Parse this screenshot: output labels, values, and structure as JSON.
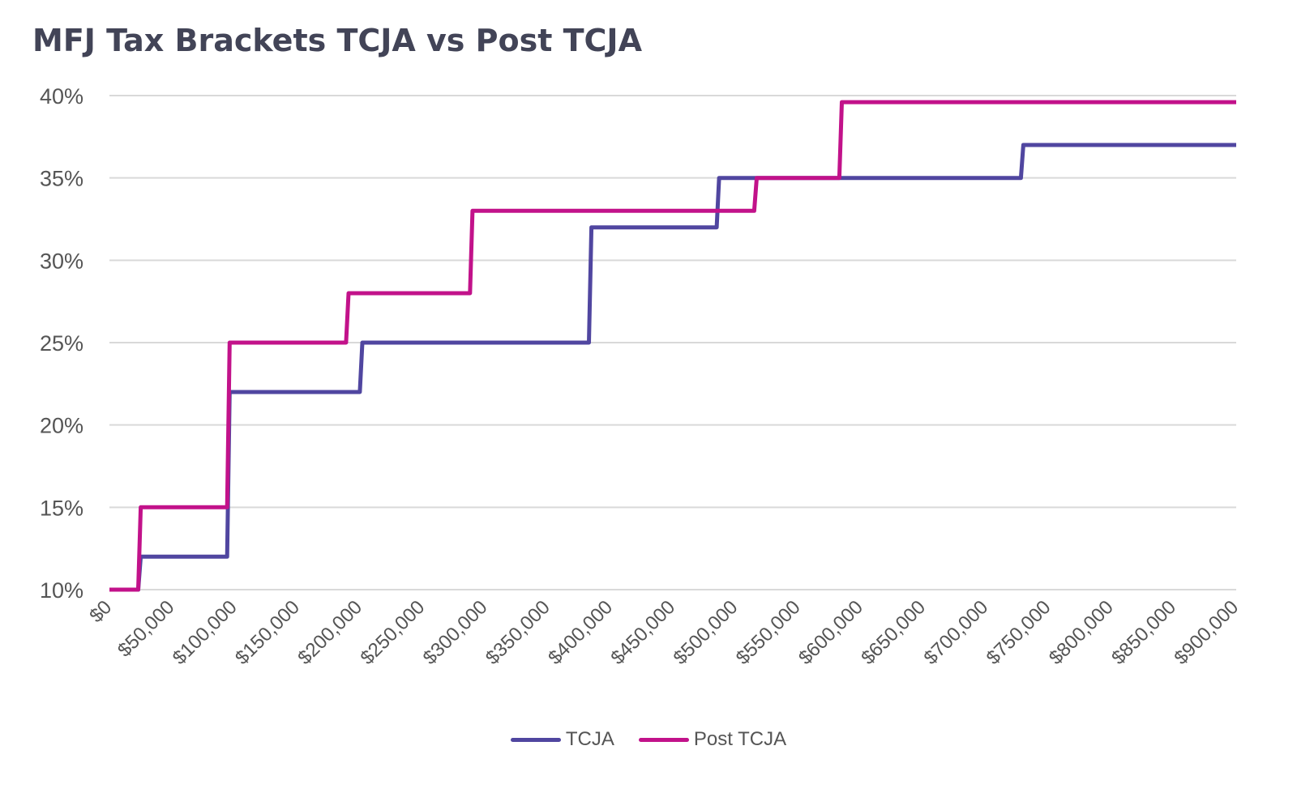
{
  "chart_data": {
    "type": "line",
    "step": true,
    "title": "MFJ Tax Brackets TCJA vs Post TCJA",
    "xlabel": "",
    "ylabel": "",
    "xlim": [
      0,
      900000
    ],
    "ylim": [
      10,
      40
    ],
    "x_ticks": [
      0,
      50000,
      100000,
      150000,
      200000,
      250000,
      300000,
      350000,
      400000,
      450000,
      500000,
      550000,
      600000,
      650000,
      700000,
      750000,
      800000,
      850000,
      900000
    ],
    "x_tick_labels": [
      "$0",
      "$50,000",
      "$100,000",
      "$150,000",
      "$200,000",
      "$250,000",
      "$300,000",
      "$350,000",
      "$400,000",
      "$450,000",
      "$500,000",
      "$550,000",
      "$600,000",
      "$650,000",
      "$700,000",
      "$750,000",
      "$800,000",
      "$850,000",
      "$900,000"
    ],
    "y_ticks": [
      10,
      15,
      20,
      25,
      30,
      35,
      40
    ],
    "y_tick_labels": [
      "10%",
      "15%",
      "20%",
      "25%",
      "30%",
      "35%",
      "40%"
    ],
    "grid": true,
    "legend_position": "bottom",
    "series": [
      {
        "name": "TCJA",
        "color": "#5046A0",
        "points": [
          [
            0,
            10
          ],
          [
            23000,
            10
          ],
          [
            25000,
            12
          ],
          [
            94000,
            12
          ],
          [
            96000,
            22
          ],
          [
            200000,
            22
          ],
          [
            202000,
            25
          ],
          [
            383000,
            25
          ],
          [
            385000,
            32
          ],
          [
            485000,
            32
          ],
          [
            487000,
            35
          ],
          [
            728000,
            35
          ],
          [
            730000,
            37
          ],
          [
            900000,
            37
          ]
        ]
      },
      {
        "name": "Post TCJA",
        "color": "#C2128A",
        "points": [
          [
            0,
            10
          ],
          [
            23000,
            10
          ],
          [
            25000,
            15
          ],
          [
            94000,
            15
          ],
          [
            96000,
            25
          ],
          [
            189000,
            25
          ],
          [
            191000,
            28
          ],
          [
            288000,
            28
          ],
          [
            290000,
            33
          ],
          [
            515000,
            33
          ],
          [
            517000,
            35
          ],
          [
            583000,
            35
          ],
          [
            585000,
            39.6
          ],
          [
            900000,
            39.6
          ]
        ]
      }
    ]
  }
}
